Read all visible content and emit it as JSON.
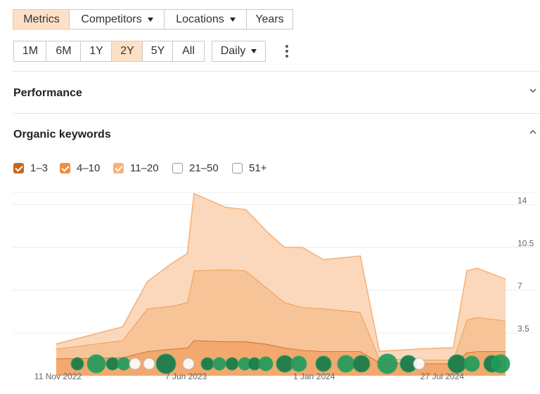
{
  "tabs": [
    "Metrics",
    "Competitors",
    "Locations",
    "Years"
  ],
  "ranges": [
    "1M",
    "6M",
    "1Y",
    "2Y",
    "5Y",
    "All"
  ],
  "interval": "Daily",
  "sections": [
    "Performance",
    "Organic keywords"
  ],
  "chart_data": {
    "type": "stacked-area",
    "x": [
      "2022-11-08",
      "2023-02-24",
      "2023-04-05",
      "2023-05-15",
      "2023-06-09",
      "2023-06-20",
      "2023-08-09",
      "2023-09-12",
      "2023-10-16",
      "2023-11-14",
      "2023-12-13",
      "2024-01-16",
      "2024-03-16",
      "2024-04-16",
      "2024-06-23",
      "2024-08-14",
      "2024-09-05",
      "2024-09-22",
      "2024-11-07"
    ],
    "series": [
      {
        "name": "1–3",
        "color": "#c8661f",
        "checked": true,
        "values": [
          1.4,
          1.5,
          2.0,
          2.2,
          2.3,
          2.9,
          2.8,
          2.8,
          2.6,
          2.3,
          2.1,
          2.0,
          2.0,
          1.1,
          1.0,
          1.0,
          1.9,
          2.0,
          2.0
        ]
      },
      {
        "name": "4–10",
        "color": "#ef8f3c",
        "checked": true,
        "values": [
          0.8,
          1.4,
          3.5,
          3.5,
          3.7,
          5.7,
          5.9,
          5.8,
          4.6,
          3.7,
          3.5,
          3.5,
          3.2,
          0.3,
          0.3,
          0.3,
          2.7,
          2.8,
          2.5
        ]
      },
      {
        "name": "11–20",
        "color": "#f6b27b",
        "checked": true,
        "values": [
          0.4,
          1.1,
          2.2,
          3.5,
          4.0,
          6.3,
          5.1,
          5.0,
          4.6,
          4.5,
          4.9,
          4.0,
          4.6,
          0.6,
          0.9,
          1.0,
          4.0,
          4.0,
          3.4
        ]
      },
      {
        "name": "21–50",
        "checked": false
      },
      {
        "name": "51+",
        "checked": false
      }
    ],
    "xlim": [
      "2022-11-07",
      "2024-11-08"
    ],
    "xticks": [
      {
        "value": "2022-11-11",
        "label": "11 Nov 2022"
      },
      {
        "value": "2023-06-07",
        "label": "7 Jun 2023"
      },
      {
        "value": "2024-01-01",
        "label": "1 Jan 2024"
      },
      {
        "value": "2024-07-27",
        "label": "27 Jul 2024"
      }
    ],
    "ylim": [
      0,
      15
    ],
    "yticks": [
      3.5,
      7,
      10.5,
      14
    ],
    "grid": true
  }
}
